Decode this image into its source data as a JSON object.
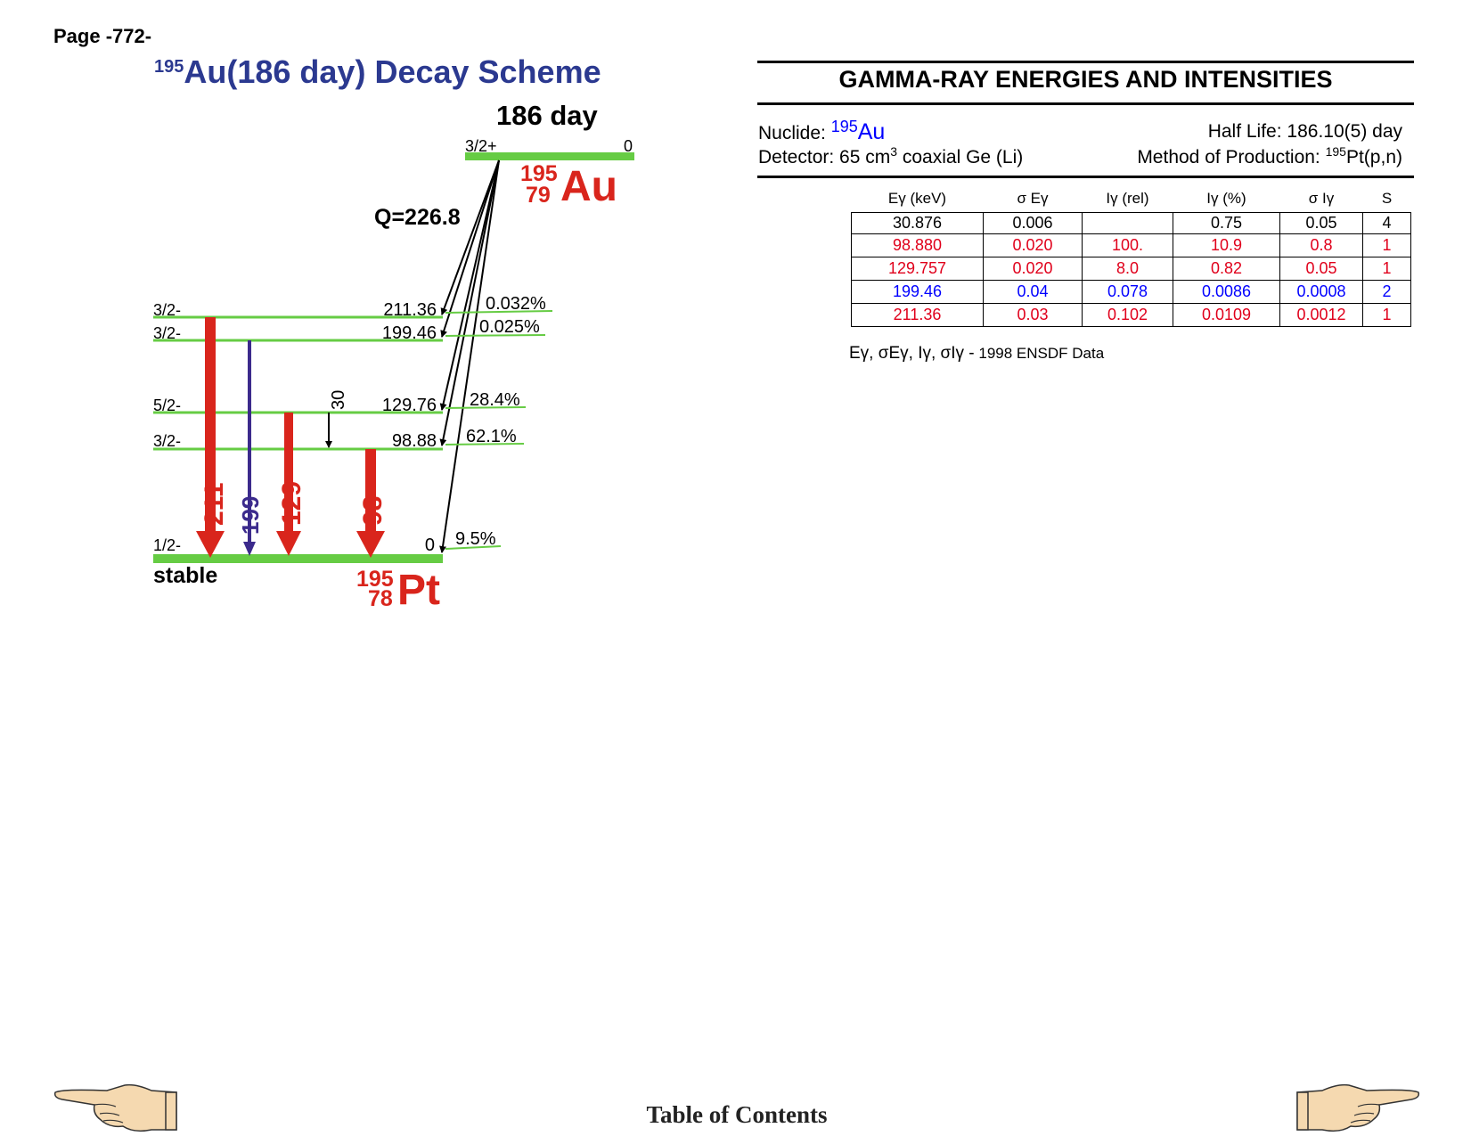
{
  "page_label": "Page -772-",
  "scheme": {
    "title_mass": "195",
    "title_text": "Au(186 day) Decay Scheme",
    "parent_halflife": "186 day",
    "parent_spin": "3/2+",
    "parent_energy": "0",
    "parent_mass": "195",
    "parent_z": "79",
    "parent_symbol": "Au",
    "q_value": "Q=226.8",
    "daughter_mass": "195",
    "daughter_z": "78",
    "daughter_symbol": "Pt",
    "ground_label": "stable",
    "levels": [
      {
        "spin": "3/2-",
        "energy": "211.36",
        "branch": "0.032%"
      },
      {
        "spin": "3/2-",
        "energy": "199.46",
        "branch": "0.025%"
      },
      {
        "spin": "5/2-",
        "energy": "129.76",
        "branch": "28.4%"
      },
      {
        "spin": "3/2-",
        "energy": "98.88",
        "branch": "62.1%"
      },
      {
        "spin": "1/2-",
        "energy": "0",
        "branch": "9.5%"
      }
    ],
    "transitions": [
      {
        "label": "211",
        "color": "#d9251c"
      },
      {
        "label": "199",
        "color": "#3b2a8c"
      },
      {
        "label": "129",
        "color": "#d9251c"
      },
      {
        "label": "98",
        "color": "#d9251c"
      },
      {
        "label": "30",
        "color": "#000000"
      }
    ],
    "level_color": "#66cc44"
  },
  "gamma": {
    "title": "GAMMA-RAY ENERGIES AND INTENSITIES",
    "nuclide_label": "Nuclide: ",
    "nuclide_mass": "195",
    "nuclide_symbol": "Au",
    "half_life": "Half Life: 186.10(5) day",
    "detector_prefix": "Detector: 65 cm",
    "detector_sup": "3",
    "detector_suffix": " coaxial Ge (Li)",
    "production_prefix": "Method of Production: ",
    "production_sup": "195",
    "production_suffix": "Pt(p,n)",
    "headers": [
      "Eγ (keV)",
      "σ Eγ",
      "Iγ (rel)",
      "Iγ (%)",
      "σ Iγ",
      "S"
    ],
    "rows": [
      {
        "style": "black",
        "cells": [
          "30.876",
          "0.006",
          "",
          "0.75",
          "0.05",
          "4"
        ]
      },
      {
        "style": "red",
        "cells": [
          "98.880",
          "0.020",
          "100.",
          "10.9",
          "0.8",
          "1"
        ]
      },
      {
        "style": "red",
        "cells": [
          "129.757",
          "0.020",
          "8.0",
          "0.82",
          "0.05",
          "1"
        ]
      },
      {
        "style": "blue",
        "cells": [
          "199.46",
          "0.04",
          "0.078",
          "0.0086",
          "0.0008",
          "2"
        ]
      },
      {
        "style": "red",
        "cells": [
          "211.36",
          "0.03",
          "0.102",
          "0.0109",
          "0.0012",
          "1"
        ]
      }
    ],
    "footnote_symbols": "Eγ, σEγ, Iγ, σIγ -",
    "footnote_text": " 1998 ENSDF Data"
  },
  "toc": "Table of Contents"
}
